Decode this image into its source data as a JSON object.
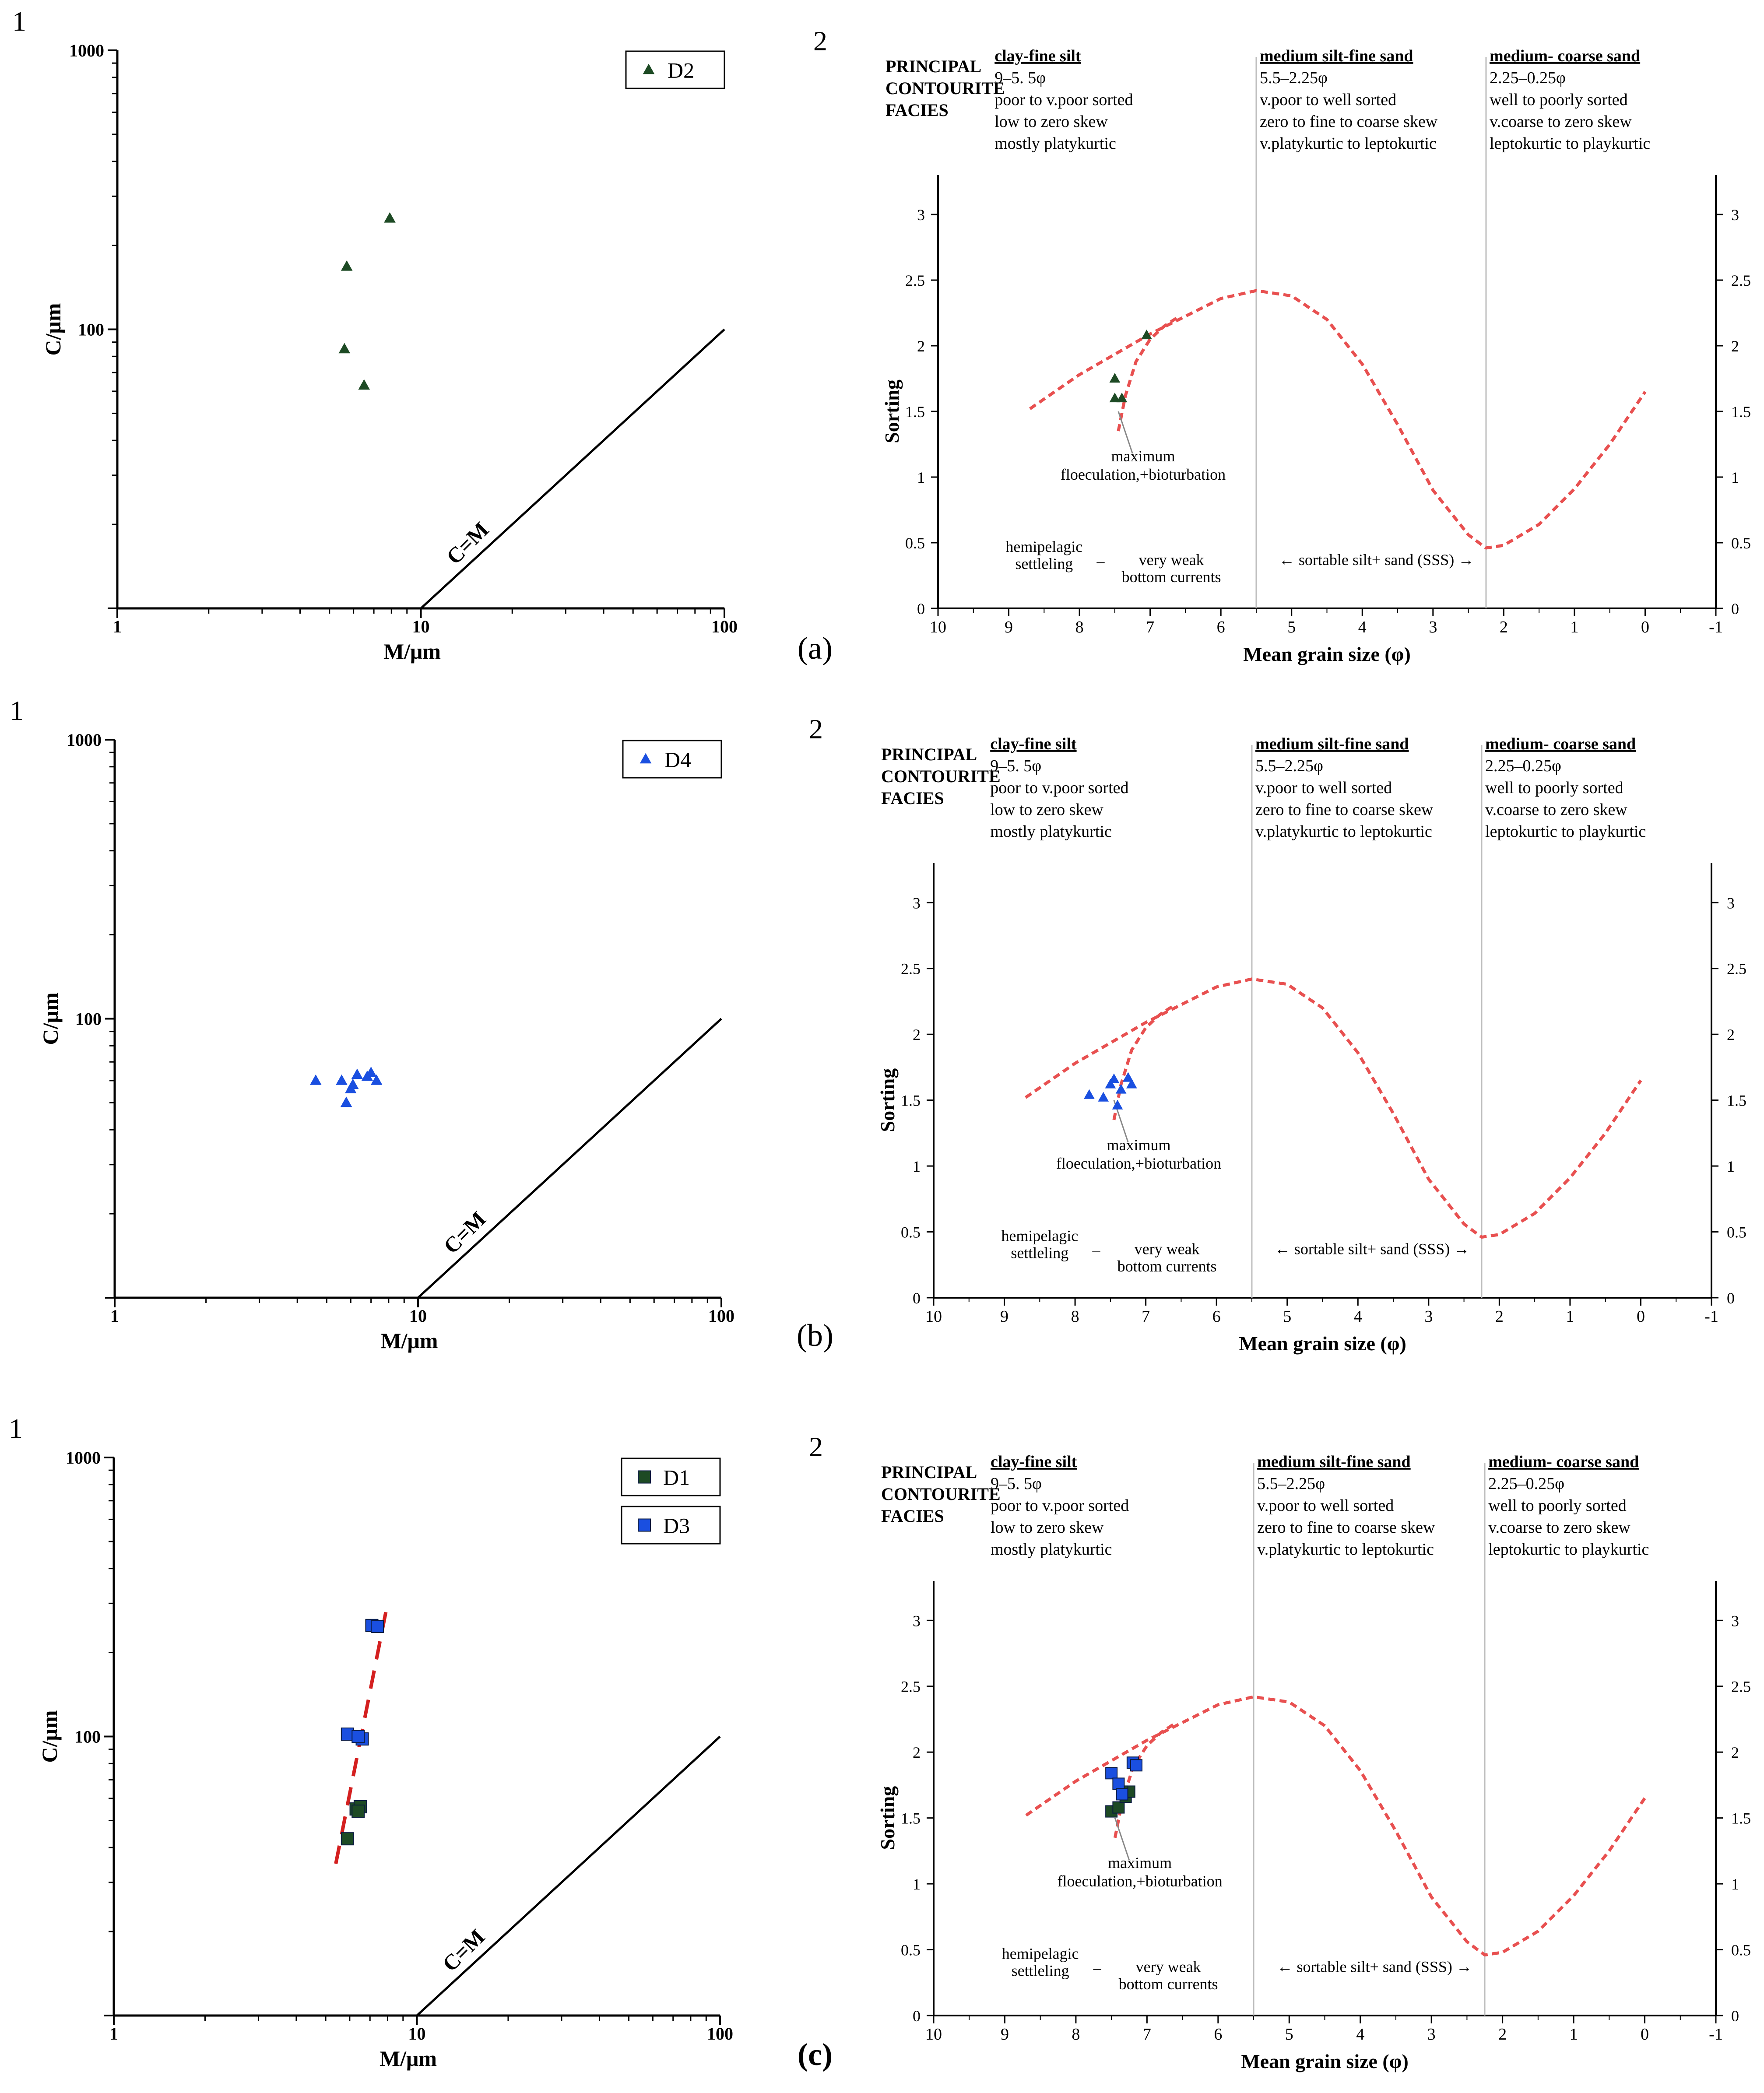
{
  "figure": {
    "rows": [
      {
        "row_label": "(a)",
        "cm": {
          "panel_number": "1",
          "xlabel": "M/μm",
          "ylabel": "C/μm",
          "x_ticks": [
            "1",
            "10",
            "100"
          ],
          "y_ticks": [
            "1000",
            "100"
          ],
          "line_label": "C=M",
          "legend": [
            "D2"
          ]
        },
        "sort": {
          "panel_number": "2",
          "legend_marker": "D2"
        }
      },
      {
        "row_label": "(b)",
        "cm": {
          "panel_number": "1",
          "xlabel": "M/μm",
          "ylabel": "C/μm",
          "x_ticks": [
            "1",
            "10",
            "100"
          ],
          "y_ticks": [
            "1000",
            "100"
          ],
          "line_label": "C=M",
          "legend": [
            "D4"
          ]
        },
        "sort": {
          "panel_number": "2",
          "legend_marker": "D4"
        }
      },
      {
        "row_label": "(c)",
        "cm": {
          "panel_number": "1",
          "xlabel": "M/μm",
          "ylabel": "C/μm",
          "x_ticks": [
            "1",
            "10",
            "100"
          ],
          "y_ticks": [
            "1000",
            "100"
          ],
          "line_label": "C=M",
          "legend": [
            "D1",
            "D3"
          ]
        },
        "sort": {
          "panel_number": "2",
          "legend_marker": "D1/D3"
        }
      }
    ],
    "sorting_panel_text": {
      "facies_title": [
        "PRINCIPAL",
        "CONTOURITE",
        "FACIES"
      ],
      "col1_head": "clay-fine silt",
      "col1_lines": [
        "9–5. 5φ",
        "poor to v.poor sorted",
        "low to zero skew",
        "mostly platykurtic"
      ],
      "col2_head": "medium silt-fine sand",
      "col2_lines": [
        "5.5–2.25φ",
        "v.poor to well sorted",
        "zero to fine to coarse skew",
        "v.platykurtic to leptokurtic"
      ],
      "col3_head": "medium- coarse sand",
      "col3_lines": [
        "2.25–0.25φ",
        "well to poorly sorted",
        "v.coarse to zero skew",
        "leptokurtic to playkurtic"
      ],
      "annotation_max": [
        "maximum",
        "floeculation,+bioturbation"
      ],
      "hemi": [
        "hemipelagic",
        "settleling"
      ],
      "dash": "–",
      "weak": [
        "very weak",
        "bottom currents"
      ],
      "sss": "← sortable silt+ sand (SSS) →",
      "xlabel": "Mean grain size (φ)",
      "ylabel": "Sorting",
      "x_ticks": [
        "10",
        "9",
        "8",
        "7",
        "6",
        "5",
        "4",
        "3",
        "2",
        "1",
        "0",
        "-1"
      ],
      "y_ticks": [
        "0",
        "0.5",
        "1",
        "1.5",
        "2",
        "2.5",
        "3"
      ]
    },
    "colors": {
      "D1": "#1d4a24",
      "D2": "#1d4a24",
      "D3": "#1a4fe0",
      "D4": "#1a4fe0",
      "envelope": "#e85050",
      "trend": "#d42020"
    }
  },
  "chart_data": [
    {
      "panel": "(a)-1",
      "type": "scatter",
      "xlabel": "M/μm",
      "ylabel": "C/μm",
      "xscale": "log",
      "yscale": "log",
      "xlim": [
        1,
        100
      ],
      "ylim": [
        10,
        1000
      ],
      "reference_line": "C=M",
      "legend_position": "top-right",
      "series": [
        {
          "name": "D2",
          "marker": "triangle",
          "x": [
            7.9,
            5.7,
            5.6,
            6.5
          ],
          "y": [
            250,
            168,
            85,
            63
          ]
        }
      ]
    },
    {
      "panel": "(a)-2",
      "type": "scatter",
      "xlabel": "Mean grain size (φ)",
      "ylabel": "Sorting",
      "xlim": [
        10,
        -1
      ],
      "ylim": [
        0,
        3.3
      ],
      "x_reversed": true,
      "facies_boundaries_phi": [
        5.5,
        2.25
      ],
      "envelope_upper": {
        "x": [
          8.7,
          8,
          7,
          6,
          5.5,
          5,
          4.5,
          4,
          3.5,
          3,
          2.5,
          2.25,
          2,
          1.5,
          1,
          0.5,
          0
        ],
        "y": [
          1.52,
          1.78,
          2.09,
          2.36,
          2.42,
          2.38,
          2.2,
          1.86,
          1.4,
          0.9,
          0.56,
          0.46,
          0.48,
          0.64,
          0.91,
          1.25,
          1.65
        ]
      },
      "envelope_lower": {
        "x": [
          7.45,
          7.35,
          7.2,
          7.0,
          6.8,
          6.6
        ],
        "y": [
          1.35,
          1.62,
          1.88,
          2.05,
          2.15,
          2.22
        ]
      },
      "series": [
        {
          "name": "D2",
          "marker": "triangle",
          "x": [
            7.05,
            7.5,
            7.5,
            7.4
          ],
          "y": [
            2.08,
            1.75,
            1.6,
            1.6
          ]
        }
      ]
    },
    {
      "panel": "(b)-1",
      "type": "scatter",
      "xlabel": "M/μm",
      "ylabel": "C/μm",
      "xscale": "log",
      "yscale": "log",
      "xlim": [
        1,
        100
      ],
      "ylim": [
        10,
        1000
      ],
      "reference_line": "C=M",
      "legend_position": "top-right",
      "series": [
        {
          "name": "D4",
          "marker": "triangle",
          "x": [
            4.6,
            5.6,
            6.0,
            6.3,
            6.8,
            7.3,
            7.0,
            6.1,
            5.8
          ],
          "y": [
            60,
            60,
            56,
            63,
            62,
            60,
            64,
            58,
            50
          ]
        }
      ]
    },
    {
      "panel": "(b)-2",
      "type": "scatter",
      "xlabel": "Mean grain size (φ)",
      "ylabel": "Sorting",
      "xlim": [
        10,
        -1
      ],
      "ylim": [
        0,
        3.3
      ],
      "x_reversed": true,
      "facies_boundaries_phi": [
        5.5,
        2.25
      ],
      "envelope_upper": {
        "x": [
          8.7,
          8,
          7,
          6,
          5.5,
          5,
          4.5,
          4,
          3.5,
          3,
          2.5,
          2.25,
          2,
          1.5,
          1,
          0.5,
          0
        ],
        "y": [
          1.52,
          1.78,
          2.09,
          2.36,
          2.42,
          2.38,
          2.2,
          1.86,
          1.4,
          0.9,
          0.56,
          0.46,
          0.48,
          0.64,
          0.91,
          1.25,
          1.65
        ]
      },
      "envelope_lower": {
        "x": [
          7.45,
          7.35,
          7.2,
          7.0,
          6.8,
          6.6
        ],
        "y": [
          1.35,
          1.62,
          1.88,
          2.05,
          2.15,
          2.22
        ]
      },
      "series": [
        {
          "name": "D4",
          "marker": "triangle",
          "x": [
            7.8,
            7.6,
            7.5,
            7.45,
            7.35,
            7.25,
            7.2,
            7.4
          ],
          "y": [
            1.54,
            1.52,
            1.62,
            1.66,
            1.58,
            1.67,
            1.62,
            1.46
          ]
        }
      ]
    },
    {
      "panel": "(c)-1",
      "type": "scatter",
      "xlabel": "M/μm",
      "ylabel": "C/μm",
      "xscale": "log",
      "yscale": "log",
      "xlim": [
        1,
        100
      ],
      "ylim": [
        10,
        1000
      ],
      "reference_line": "C=M",
      "trend_line": {
        "x": [
          5.4,
          8.0
        ],
        "y": [
          35,
          300
        ]
      },
      "legend_position": "top-right",
      "series": [
        {
          "name": "D1",
          "marker": "square",
          "x": [
            5.9,
            6.3,
            6.5,
            6.4
          ],
          "y": [
            43,
            55,
            56,
            54
          ]
        },
        {
          "name": "D3",
          "marker": "square",
          "x": [
            7.1,
            7.4,
            5.9,
            6.6,
            6.4
          ],
          "y": [
            250,
            248,
            102,
            98,
            100
          ]
        }
      ]
    },
    {
      "panel": "(c)-2",
      "type": "scatter",
      "xlabel": "Mean grain size (φ)",
      "ylabel": "Sorting",
      "xlim": [
        10,
        -1
      ],
      "ylim": [
        0,
        3.3
      ],
      "x_reversed": true,
      "facies_boundaries_phi": [
        5.5,
        2.25
      ],
      "envelope_upper": {
        "x": [
          8.7,
          8,
          7,
          6,
          5.5,
          5,
          4.5,
          4,
          3.5,
          3,
          2.5,
          2.25,
          2,
          1.5,
          1,
          0.5,
          0
        ],
        "y": [
          1.52,
          1.78,
          2.09,
          2.36,
          2.42,
          2.38,
          2.2,
          1.86,
          1.4,
          0.9,
          0.56,
          0.46,
          0.48,
          0.64,
          0.91,
          1.25,
          1.65
        ]
      },
      "envelope_lower": {
        "x": [
          7.45,
          7.35,
          7.2,
          7.0,
          6.8,
          6.6
        ],
        "y": [
          1.35,
          1.62,
          1.88,
          2.05,
          2.15,
          2.22
        ]
      },
      "series": [
        {
          "name": "D1",
          "marker": "square",
          "x": [
            7.5,
            7.4,
            7.3,
            7.25,
            7.35
          ],
          "y": [
            1.55,
            1.58,
            1.66,
            1.7,
            1.7
          ]
        },
        {
          "name": "D3",
          "marker": "square",
          "x": [
            7.2,
            7.15,
            7.5,
            7.4,
            7.35
          ],
          "y": [
            1.92,
            1.9,
            1.84,
            1.76,
            1.68
          ]
        }
      ]
    }
  ]
}
